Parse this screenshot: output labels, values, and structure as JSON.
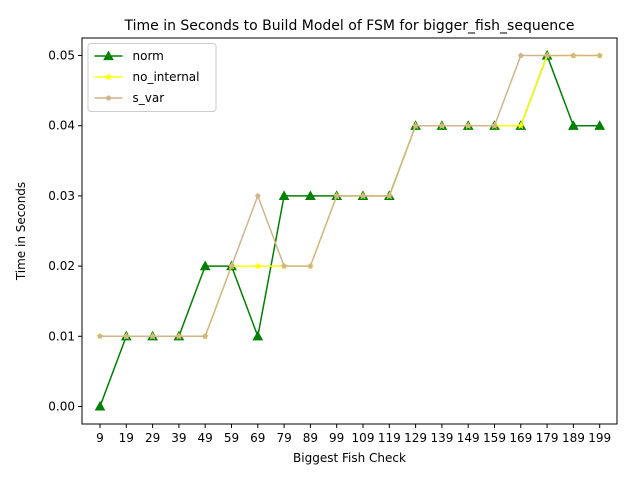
{
  "chart_data": {
    "type": "line",
    "title": "Time in Seconds to Build Model of FSM for bigger_fish_sequence",
    "xlabel": "Biggest Fish Check",
    "ylabel": "Time in Seconds",
    "categories": [
      "9",
      "19",
      "29",
      "39",
      "49",
      "59",
      "69",
      "79",
      "89",
      "99",
      "109",
      "119",
      "129",
      "139",
      "149",
      "159",
      "169",
      "179",
      "189",
      "199"
    ],
    "ylim": [
      -0.0025,
      0.0525
    ],
    "yticks": [
      "0.00",
      "0.01",
      "0.02",
      "0.03",
      "0.04",
      "0.05"
    ],
    "ytick_values": [
      0,
      0.01,
      0.02,
      0.03,
      0.04,
      0.05
    ],
    "grid": false,
    "legend_position": "upper-left",
    "series": [
      {
        "name": "norm",
        "color": "#008000",
        "marker": "triangle-up",
        "values": [
          0.0,
          0.01,
          0.01,
          0.01,
          0.02,
          0.02,
          0.01,
          0.03,
          0.03,
          0.03,
          0.03,
          0.03,
          0.04,
          0.04,
          0.04,
          0.04,
          0.04,
          0.05,
          0.04,
          0.04
        ]
      },
      {
        "name": "no_internal",
        "color": "#ffff00",
        "marker": "star",
        "values": [
          0.01,
          0.01,
          0.01,
          0.01,
          0.01,
          0.02,
          0.02,
          0.02,
          0.02,
          0.03,
          0.03,
          0.03,
          0.04,
          0.04,
          0.04,
          0.04,
          0.04,
          0.05,
          0.05,
          0.05
        ]
      },
      {
        "name": "s_var",
        "color": "#d2b48c",
        "marker": "pentagon",
        "values": [
          0.01,
          0.01,
          0.01,
          0.01,
          0.01,
          0.02,
          0.03,
          0.02,
          0.02,
          0.03,
          0.03,
          0.03,
          0.04,
          0.04,
          0.04,
          0.04,
          0.05,
          0.05,
          0.05,
          0.05
        ]
      }
    ]
  }
}
